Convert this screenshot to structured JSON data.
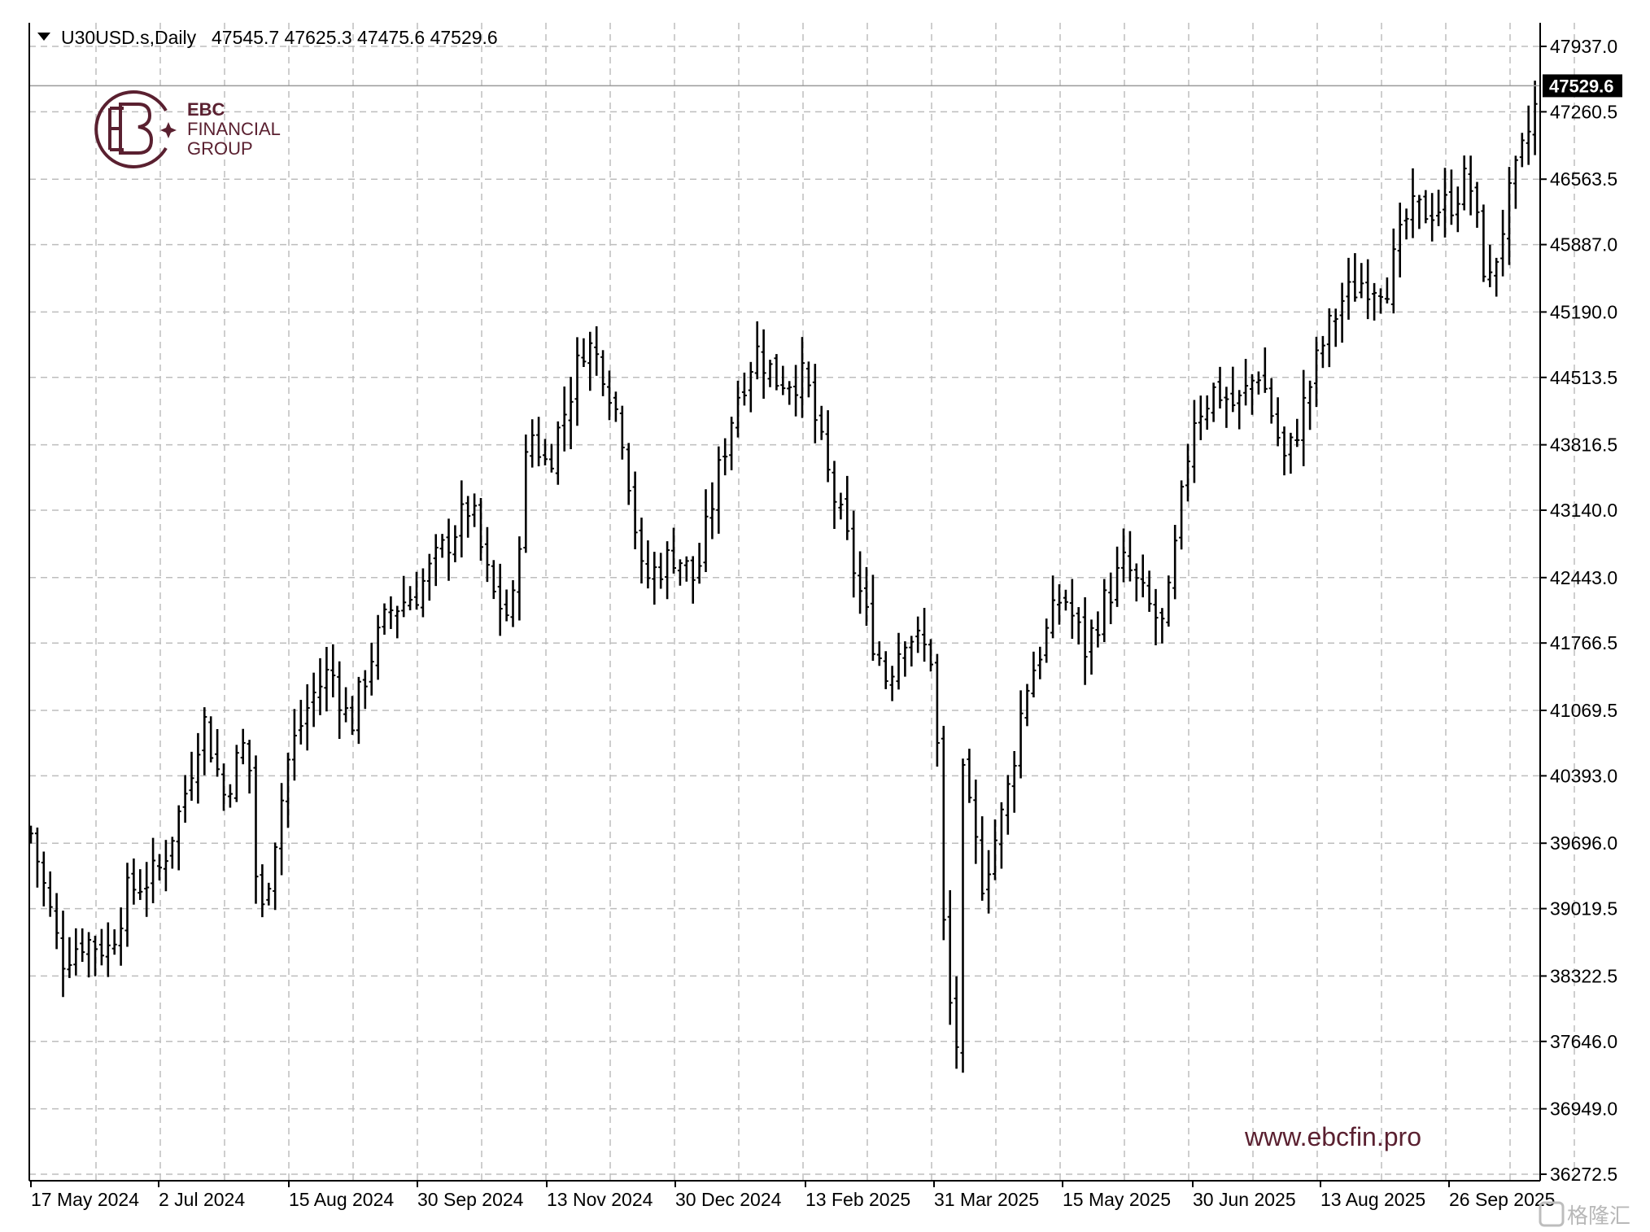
{
  "header": {
    "symbol": "U30USD.s,Daily",
    "ohlc": "47545.7 47625.3 47475.6 47529.6"
  },
  "current_price_label": "47529.6",
  "logo": {
    "line1": "EBC",
    "line2": "FINANCIAL",
    "line3": "GROUP"
  },
  "website": "www.ebcfin.pro",
  "watermark": "格隆汇",
  "colors": {
    "background": "#ffffff",
    "bars": "#000000",
    "grid": "#c0c0c0",
    "brand": "#5a2030"
  },
  "chart_data": {
    "type": "ohlc-bar",
    "title": "U30USD.s,Daily",
    "xlabel": "",
    "ylabel": "",
    "grid": true,
    "ylim": [
      36272.5,
      47937.0
    ],
    "y_ticks": [
      "47937.0",
      "47260.5",
      "46563.5",
      "45887.0",
      "45190.0",
      "44513.5",
      "43816.5",
      "43140.0",
      "42443.0",
      "41766.5",
      "41069.5",
      "40393.0",
      "39696.0",
      "39019.5",
      "38322.5",
      "37646.0",
      "36949.0",
      "36272.5"
    ],
    "x_ticks": [
      "17 May 2024",
      "2 Jul 2024",
      "15 Aug 2024",
      "30 Sep 2024",
      "13 Nov 2024",
      "30 Dec 2024",
      "13 Feb 2025",
      "31 Mar 2025",
      "15 May 2025",
      "30 Jun 2025",
      "13 Aug 2025",
      "26 Sep 2025"
    ],
    "last_price": 47529.6,
    "series": [
      {
        "name": "U30USD.s",
        "close_path": [
          [
            "17 May 2024",
            39800
          ],
          [
            "28 May 2024",
            38500
          ],
          [
            "5 Jun 2024",
            38700
          ],
          [
            "14 Jun 2024",
            38600
          ],
          [
            "21 Jun 2024",
            39200
          ],
          [
            "2 Jul 2024",
            39400
          ],
          [
            "10 Jul 2024",
            40100
          ],
          [
            "17 Jul 2024",
            41000
          ],
          [
            "24 Jul 2024",
            40200
          ],
          [
            "1 Aug 2024",
            40800
          ],
          [
            "5 Aug 2024",
            38800
          ],
          [
            "15 Aug 2024",
            40600
          ],
          [
            "23 Aug 2024",
            41200
          ],
          [
            "30 Aug 2024",
            41500
          ],
          [
            "6 Sep 2024",
            40900
          ],
          [
            "13 Sep 2024",
            41600
          ],
          [
            "20 Sep 2024",
            42100
          ],
          [
            "30 Sep 2024",
            42300
          ],
          [
            "10 Oct 2024",
            42800
          ],
          [
            "18 Oct 2024",
            43200
          ],
          [
            "25 Oct 2024",
            42300
          ],
          [
            "1 Nov 2024",
            42000
          ],
          [
            "7 Nov 2024",
            44000
          ],
          [
            "13 Nov 2024",
            43600
          ],
          [
            "20 Nov 2024",
            44200
          ],
          [
            "27 Nov 2024",
            44900
          ],
          [
            "4 Dec 2024",
            44600
          ],
          [
            "11 Dec 2024",
            43900
          ],
          [
            "18 Dec 2024",
            42400
          ],
          [
            "30 Dec 2024",
            42700
          ],
          [
            "6 Jan 2025",
            42400
          ],
          [
            "13 Jan 2025",
            43400
          ],
          [
            "20 Jan 2025",
            44300
          ],
          [
            "27 Jan 2025",
            44800
          ],
          [
            "3 Feb 2025",
            44500
          ],
          [
            "13 Feb 2025",
            44500
          ],
          [
            "21 Feb 2025",
            43500
          ],
          [
            "28 Feb 2025",
            42800
          ],
          [
            "7 Mar 2025",
            42000
          ],
          [
            "14 Mar 2025",
            41400
          ],
          [
            "21 Mar 2025",
            41900
          ],
          [
            "31 Mar 2025",
            41600
          ],
          [
            "4 Apr 2025",
            38300
          ],
          [
            "8 Apr 2025",
            37600
          ],
          [
            "9 Apr 2025",
            40500
          ],
          [
            "17 Apr 2025",
            39300
          ],
          [
            "25 Apr 2025",
            40100
          ],
          [
            "2 May 2025",
            41300
          ],
          [
            "15 May 2025",
            42300
          ],
          [
            "23 May 2025",
            41700
          ],
          [
            "30 May 2025",
            42200
          ],
          [
            "6 Jun 2025",
            42600
          ],
          [
            "13 Jun 2025",
            42200
          ],
          [
            "20 Jun 2025",
            41900
          ],
          [
            "30 Jun 2025",
            44100
          ],
          [
            "8 Jul 2025",
            44400
          ],
          [
            "15 Jul 2025",
            44200
          ],
          [
            "23 Jul 2025",
            44600
          ],
          [
            "1 Aug 2025",
            43600
          ],
          [
            "13 Aug 2025",
            44800
          ],
          [
            "20 Aug 2025",
            45300
          ],
          [
            "27 Aug 2025",
            45500
          ],
          [
            "5 Sep 2025",
            45500
          ],
          [
            "12 Sep 2025",
            46200
          ],
          [
            "26 Sep 2025",
            46300
          ],
          [
            "3 Oct 2025",
            46600
          ],
          [
            "10 Oct 2025",
            45400
          ],
          [
            "17 Oct 2025",
            46300
          ],
          [
            "24 Oct 2025",
            47000
          ],
          [
            "29 Oct 2025",
            47529.6
          ]
        ]
      }
    ]
  }
}
